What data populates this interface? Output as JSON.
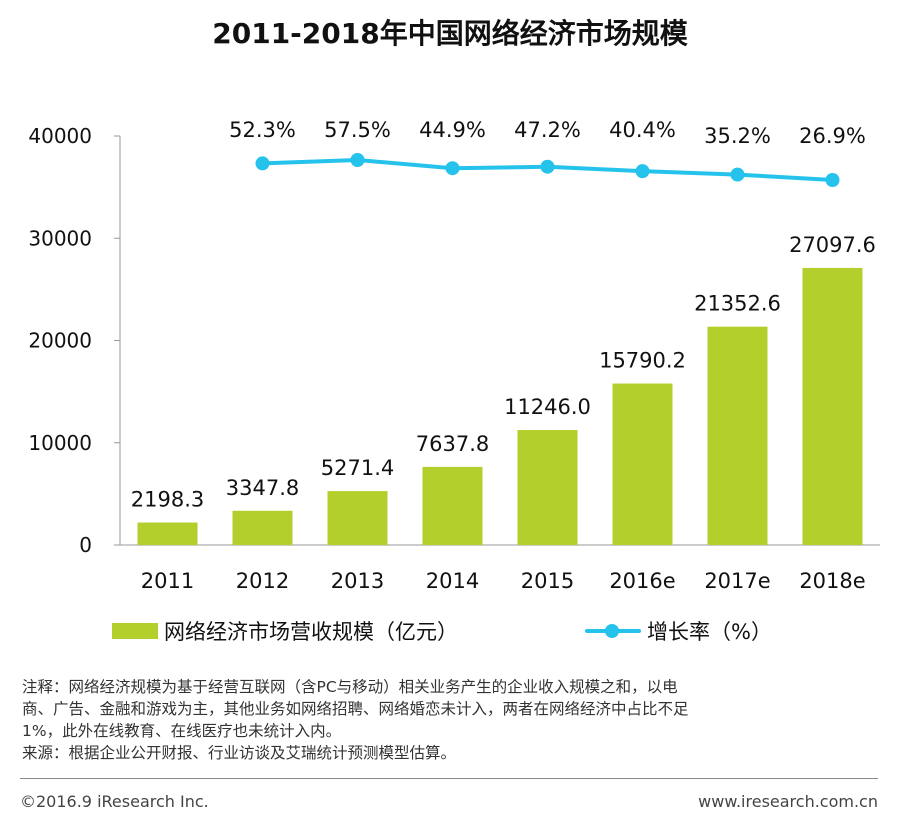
{
  "colors": {
    "bar": "#b2cf2c",
    "line": "#25c3eb",
    "axis": "#999999",
    "text": "#111111"
  },
  "chart_data": {
    "type": "bar",
    "title": "2011-2018年中国网络经济市场规模",
    "categories": [
      "2011",
      "2012",
      "2013",
      "2014",
      "2015",
      "2016e",
      "2017e",
      "2018e"
    ],
    "ylim": [
      0,
      40000
    ],
    "yticks": [
      0,
      10000,
      20000,
      30000,
      40000
    ],
    "xlabel": "",
    "ylabel": "",
    "series": [
      {
        "name": "网络经济市场营收规模（亿元）",
        "kind": "bar",
        "values": [
          2198.3,
          3347.8,
          5271.4,
          7637.8,
          11246.0,
          15790.2,
          21352.6,
          27097.6
        ],
        "labels": [
          "2198.3",
          "3347.8",
          "5271.4",
          "7637.8",
          "11246.0",
          "15790.2",
          "21352.6",
          "27097.6"
        ]
      },
      {
        "name": "增长率（%）",
        "kind": "line",
        "values": [
          null,
          52.3,
          57.5,
          44.9,
          47.2,
          40.4,
          35.2,
          26.9
        ],
        "labels": [
          "",
          "52.3%",
          "57.5%",
          "44.9%",
          "47.2%",
          "40.4%",
          "35.2%",
          "26.9%"
        ]
      }
    ],
    "legend_position": "bottom"
  },
  "legend": {
    "bar_label": "网络经济市场营收规模（亿元）",
    "line_label": "增长率（%）"
  },
  "note": {
    "line1": "注释：网络经济规模为基于经营互联网（含PC与移动）相关业务产生的企业收入规模之和，以电",
    "line2": "商、广告、金融和游戏为主，其他业务如网络招聘、网络婚恋未计入，两者在网络经济中占比不足",
    "line3": "1%，此外在线教育、在线医疗也未统计入内。",
    "line4": "来源：根据企业公开财报、行业访谈及艾瑞统计预测模型估算。"
  },
  "footer": {
    "copyright": "©2016.9 iResearch Inc.",
    "website": "www.iresearch.com.cn"
  }
}
